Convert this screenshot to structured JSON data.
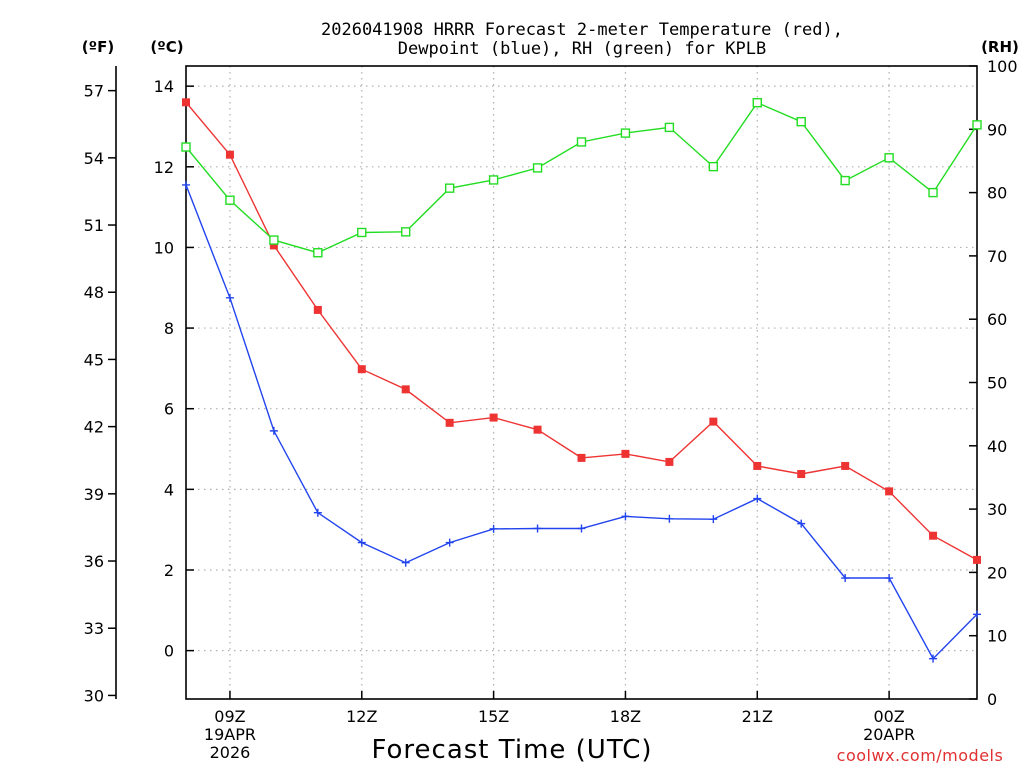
{
  "chart_data": {
    "type": "line",
    "title_line1": "2026041908 HRRR Forecast 2-meter Temperature (red),",
    "title_line2": "Dewpoint (blue), RH (green) for KPLB",
    "xlabel": "Forecast Time (UTC)",
    "watermark": "coolwx.com/models",
    "left_outer_axis": {
      "unit": "(ºF)",
      "ticks": [
        30,
        33,
        36,
        39,
        42,
        45,
        48,
        51,
        54,
        57
      ]
    },
    "left_axis": {
      "unit": "(ºC)",
      "ylim": [
        -1.2,
        14.5
      ],
      "ticks": [
        0,
        2,
        4,
        6,
        8,
        10,
        12,
        14
      ]
    },
    "right_axis": {
      "unit": "(RH)",
      "ylim": [
        0,
        100
      ],
      "ticks": [
        0,
        10,
        20,
        30,
        40,
        50,
        60,
        70,
        80,
        90,
        100
      ]
    },
    "x_hours": [
      8,
      9,
      10,
      11,
      12,
      13,
      14,
      15,
      16,
      17,
      18,
      19,
      20,
      21,
      22,
      23,
      24,
      25,
      26
    ],
    "x_ticks": [
      {
        "hour": 9,
        "lines": [
          "09Z",
          "19APR",
          "2026"
        ]
      },
      {
        "hour": 12,
        "lines": [
          "12Z"
        ]
      },
      {
        "hour": 15,
        "lines": [
          "15Z"
        ]
      },
      {
        "hour": 18,
        "lines": [
          "18Z"
        ]
      },
      {
        "hour": 21,
        "lines": [
          "21Z"
        ]
      },
      {
        "hour": 24,
        "lines": [
          "00Z",
          "20APR"
        ]
      }
    ],
    "series": [
      {
        "name": "Temperature",
        "axis": "celsius",
        "color": "#ee3333",
        "marker": "filled-square",
        "values": [
          13.6,
          12.3,
          10.05,
          8.45,
          6.98,
          6.48,
          5.65,
          5.78,
          5.48,
          4.78,
          4.88,
          4.68,
          5.68,
          4.58,
          4.38,
          4.58,
          3.95,
          2.85,
          2.25
        ]
      },
      {
        "name": "Dewpoint",
        "axis": "celsius",
        "color": "#2244ee",
        "marker": "plus",
        "values": [
          11.55,
          8.75,
          5.45,
          3.42,
          2.68,
          2.18,
          2.68,
          3.02,
          3.03,
          3.03,
          3.33,
          3.27,
          3.26,
          3.77,
          3.15,
          1.8,
          1.8,
          -0.2,
          0.9
        ]
      },
      {
        "name": "RH",
        "axis": "rh",
        "color": "#22dd22",
        "marker": "open-square",
        "values": [
          87.2,
          78.8,
          72.5,
          70.5,
          73.7,
          73.8,
          80.7,
          82.0,
          83.9,
          88.0,
          89.4,
          90.3,
          84.1,
          94.2,
          91.2,
          81.9,
          85.5,
          80.0,
          90.7
        ]
      }
    ]
  }
}
